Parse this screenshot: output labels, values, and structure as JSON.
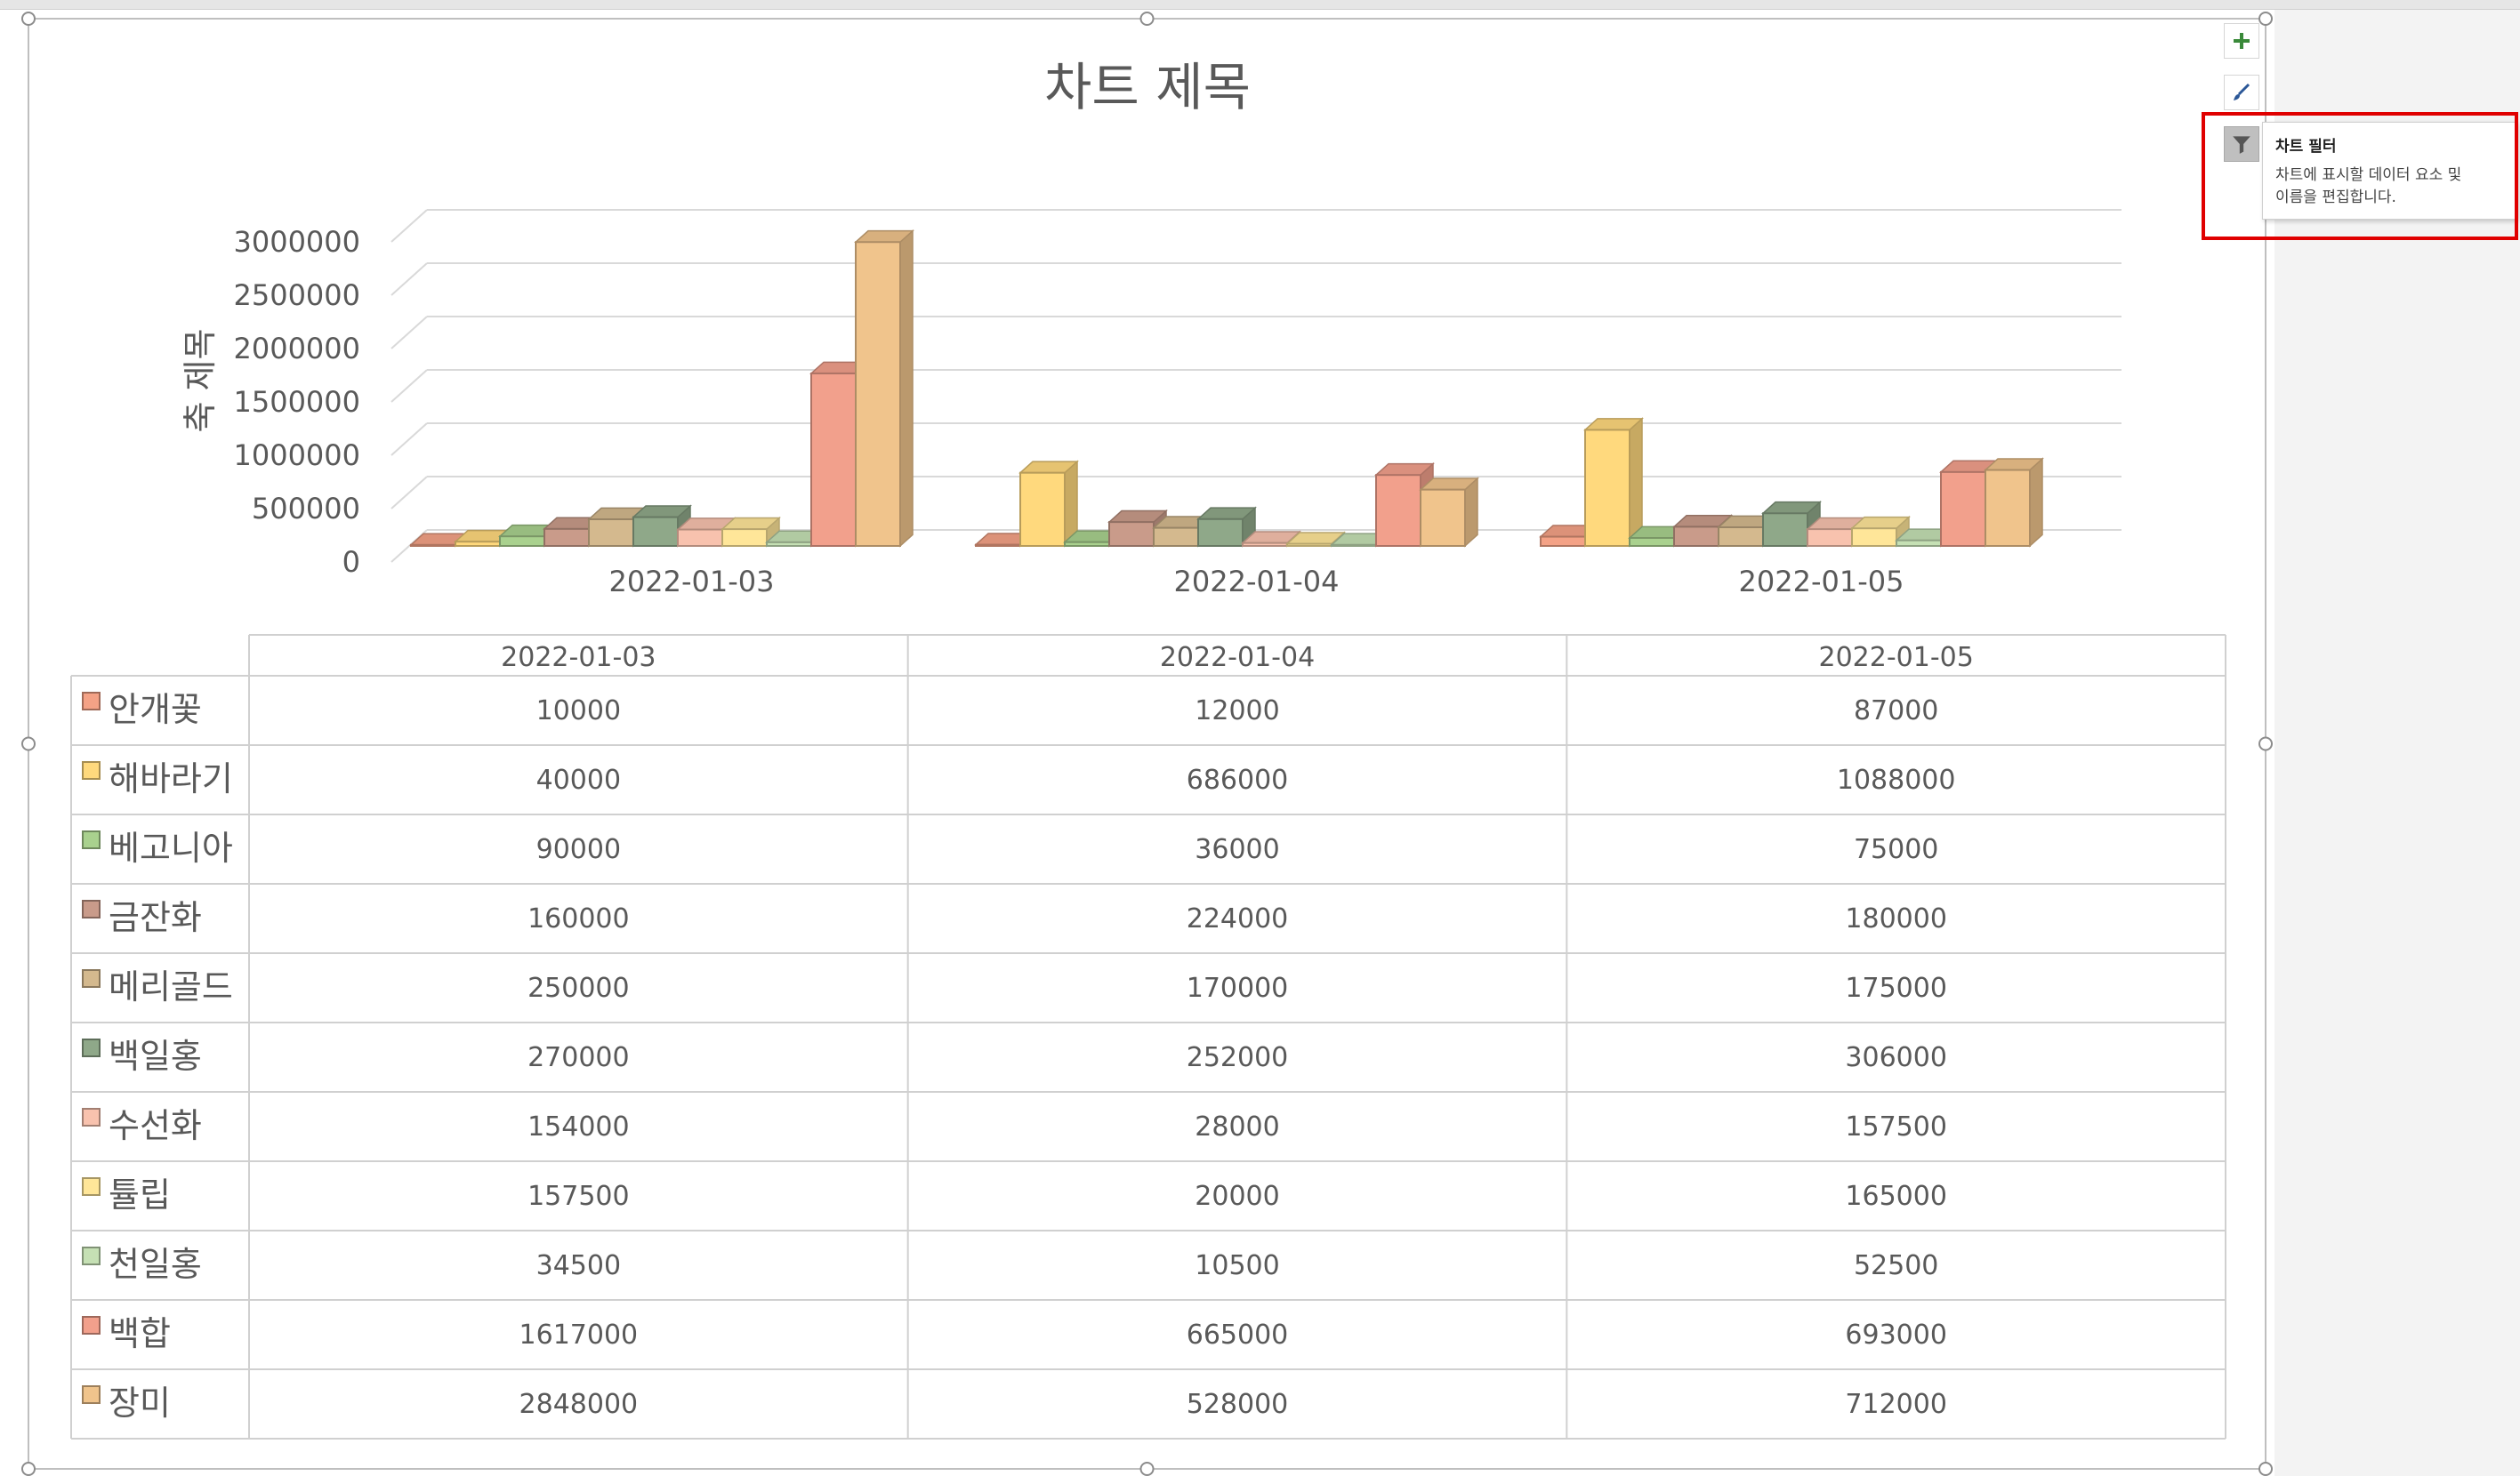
{
  "chart_data": {
    "type": "bar",
    "title": "차트 제목",
    "ylabel": "축 제목",
    "ylim": [
      0,
      3000000
    ],
    "yticks": [
      0,
      500000,
      1000000,
      1500000,
      2000000,
      2500000,
      3000000
    ],
    "categories": [
      "2022-01-03",
      "2022-01-04",
      "2022-01-05"
    ],
    "grid": true,
    "legend": "data-table",
    "series": [
      {
        "name": "안개꽃",
        "color": "#F4A286",
        "values": [
          10000,
          12000,
          87000
        ]
      },
      {
        "name": "해바라기",
        "color": "#FFD97D",
        "values": [
          40000,
          686000,
          1088000
        ]
      },
      {
        "name": "베고니아",
        "color": "#A9D18E",
        "values": [
          90000,
          36000,
          75000
        ]
      },
      {
        "name": "금잔화",
        "color": "#C99B8A",
        "values": [
          160000,
          224000,
          180000
        ]
      },
      {
        "name": "메리골드",
        "color": "#D4B98E",
        "values": [
          250000,
          170000,
          175000
        ]
      },
      {
        "name": "백일홍",
        "color": "#8FA889",
        "values": [
          270000,
          252000,
          306000
        ]
      },
      {
        "name": "수선화",
        "color": "#F8C2AE",
        "values": [
          154000,
          28000,
          157500
        ]
      },
      {
        "name": "튤립",
        "color": "#FFE699",
        "values": [
          157500,
          20000,
          165000
        ]
      },
      {
        "name": "천일홍",
        "color": "#C5E0B4",
        "values": [
          34500,
          10500,
          52500
        ]
      },
      {
        "name": "백합",
        "color": "#F2A08C",
        "values": [
          1617000,
          665000,
          693000
        ]
      },
      {
        "name": "장미",
        "color": "#F0C48C",
        "values": [
          2848000,
          528000,
          712000
        ]
      }
    ]
  },
  "tooltip": {
    "title": "차트 필터",
    "line1": "차트에 표시할 데이터 요소 및",
    "line2": "이름을 편집합니다."
  },
  "side_buttons": [
    {
      "icon": "plus-icon",
      "color": "#2e7d32"
    },
    {
      "icon": "brush-icon",
      "color": "#2b5797"
    },
    {
      "icon": "funnel-icon",
      "color": "#555555"
    }
  ]
}
